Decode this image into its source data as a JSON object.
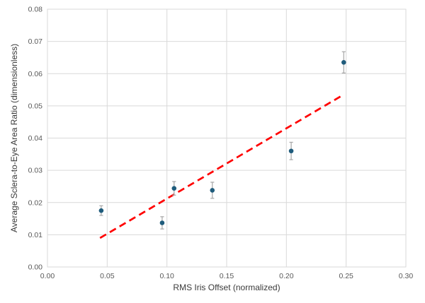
{
  "chart_data": {
    "type": "scatter",
    "title": "",
    "xlabel": "RMS Iris Offset (normalized)",
    "ylabel": "Average Sclera-to-Eye Area Ratio (dimensionless)",
    "xlim": [
      0.0,
      0.3
    ],
    "ylim": [
      0.0,
      0.08
    ],
    "x_ticks": [
      "0.00",
      "0.05",
      "0.10",
      "0.15",
      "0.20",
      "0.25",
      "0.30"
    ],
    "y_ticks": [
      "0.00",
      "0.01",
      "0.02",
      "0.03",
      "0.04",
      "0.05",
      "0.06",
      "0.07",
      "0.08"
    ],
    "grid": true,
    "legend": false,
    "points": [
      {
        "x": 0.045,
        "y": 0.0175,
        "yerr": 0.0015
      },
      {
        "x": 0.096,
        "y": 0.0137,
        "yerr": 0.0019
      },
      {
        "x": 0.106,
        "y": 0.0244,
        "yerr": 0.0021
      },
      {
        "x": 0.138,
        "y": 0.0238,
        "yerr": 0.0025
      },
      {
        "x": 0.204,
        "y": 0.036,
        "yerr": 0.0027
      },
      {
        "x": 0.248,
        "y": 0.0635,
        "yerr": 0.0033
      }
    ],
    "trendline": {
      "x1": 0.044,
      "y1": 0.009,
      "x2": 0.248,
      "y2": 0.0535,
      "style": "dashed"
    }
  },
  "colors": {
    "background": "#ffffff",
    "gridline": "#d9d9d9",
    "plot_border": "#d9d9d9",
    "marker": "#1f5c7c",
    "error_bar": "#a6a6a6",
    "trendline": "#ff0000",
    "tick_label": "#595959",
    "axis_title": "#3a3a3a"
  }
}
